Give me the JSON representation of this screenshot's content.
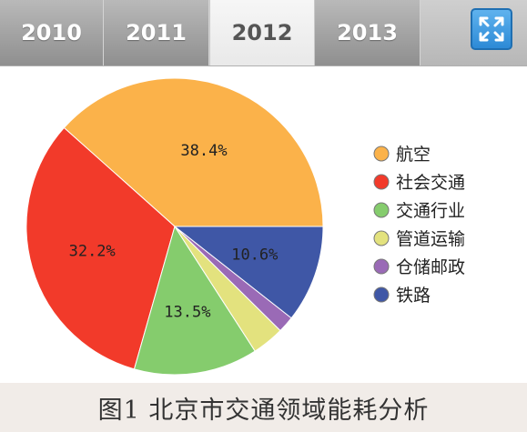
{
  "tabs": [
    {
      "label": "2010",
      "active": false
    },
    {
      "label": "2011",
      "active": false
    },
    {
      "label": "2012",
      "active": true
    },
    {
      "label": "2013",
      "active": false
    }
  ],
  "expand_icon": "expand-arrows-icon",
  "colors": {
    "aviation": "#fbb24a",
    "social": "#f23a2a",
    "transport_industry": "#85cc6d",
    "pipeline": "#e3e27e",
    "warehouse": "#9a6ab6",
    "railway": "#3f57a6"
  },
  "chart_data": {
    "type": "pie",
    "title": "",
    "legend_position": "right",
    "slices": [
      {
        "name": "航空",
        "value": 38.4,
        "label": "38.4%",
        "color": "#fbb24a"
      },
      {
        "name": "社会交通",
        "value": 32.2,
        "label": "32.2%",
        "color": "#f23a2a"
      },
      {
        "name": "交通行业",
        "value": 13.5,
        "label": "13.5%",
        "color": "#85cc6d"
      },
      {
        "name": "管道运输",
        "value": 3.5,
        "label": "",
        "color": "#e3e27e"
      },
      {
        "name": "仓储邮政",
        "value": 1.8,
        "label": "",
        "color": "#9a6ab6"
      },
      {
        "name": "铁路",
        "value": 10.6,
        "label": "10.6%",
        "color": "#3f57a6"
      }
    ]
  },
  "caption": "图1  北京市交通领域能耗分析"
}
